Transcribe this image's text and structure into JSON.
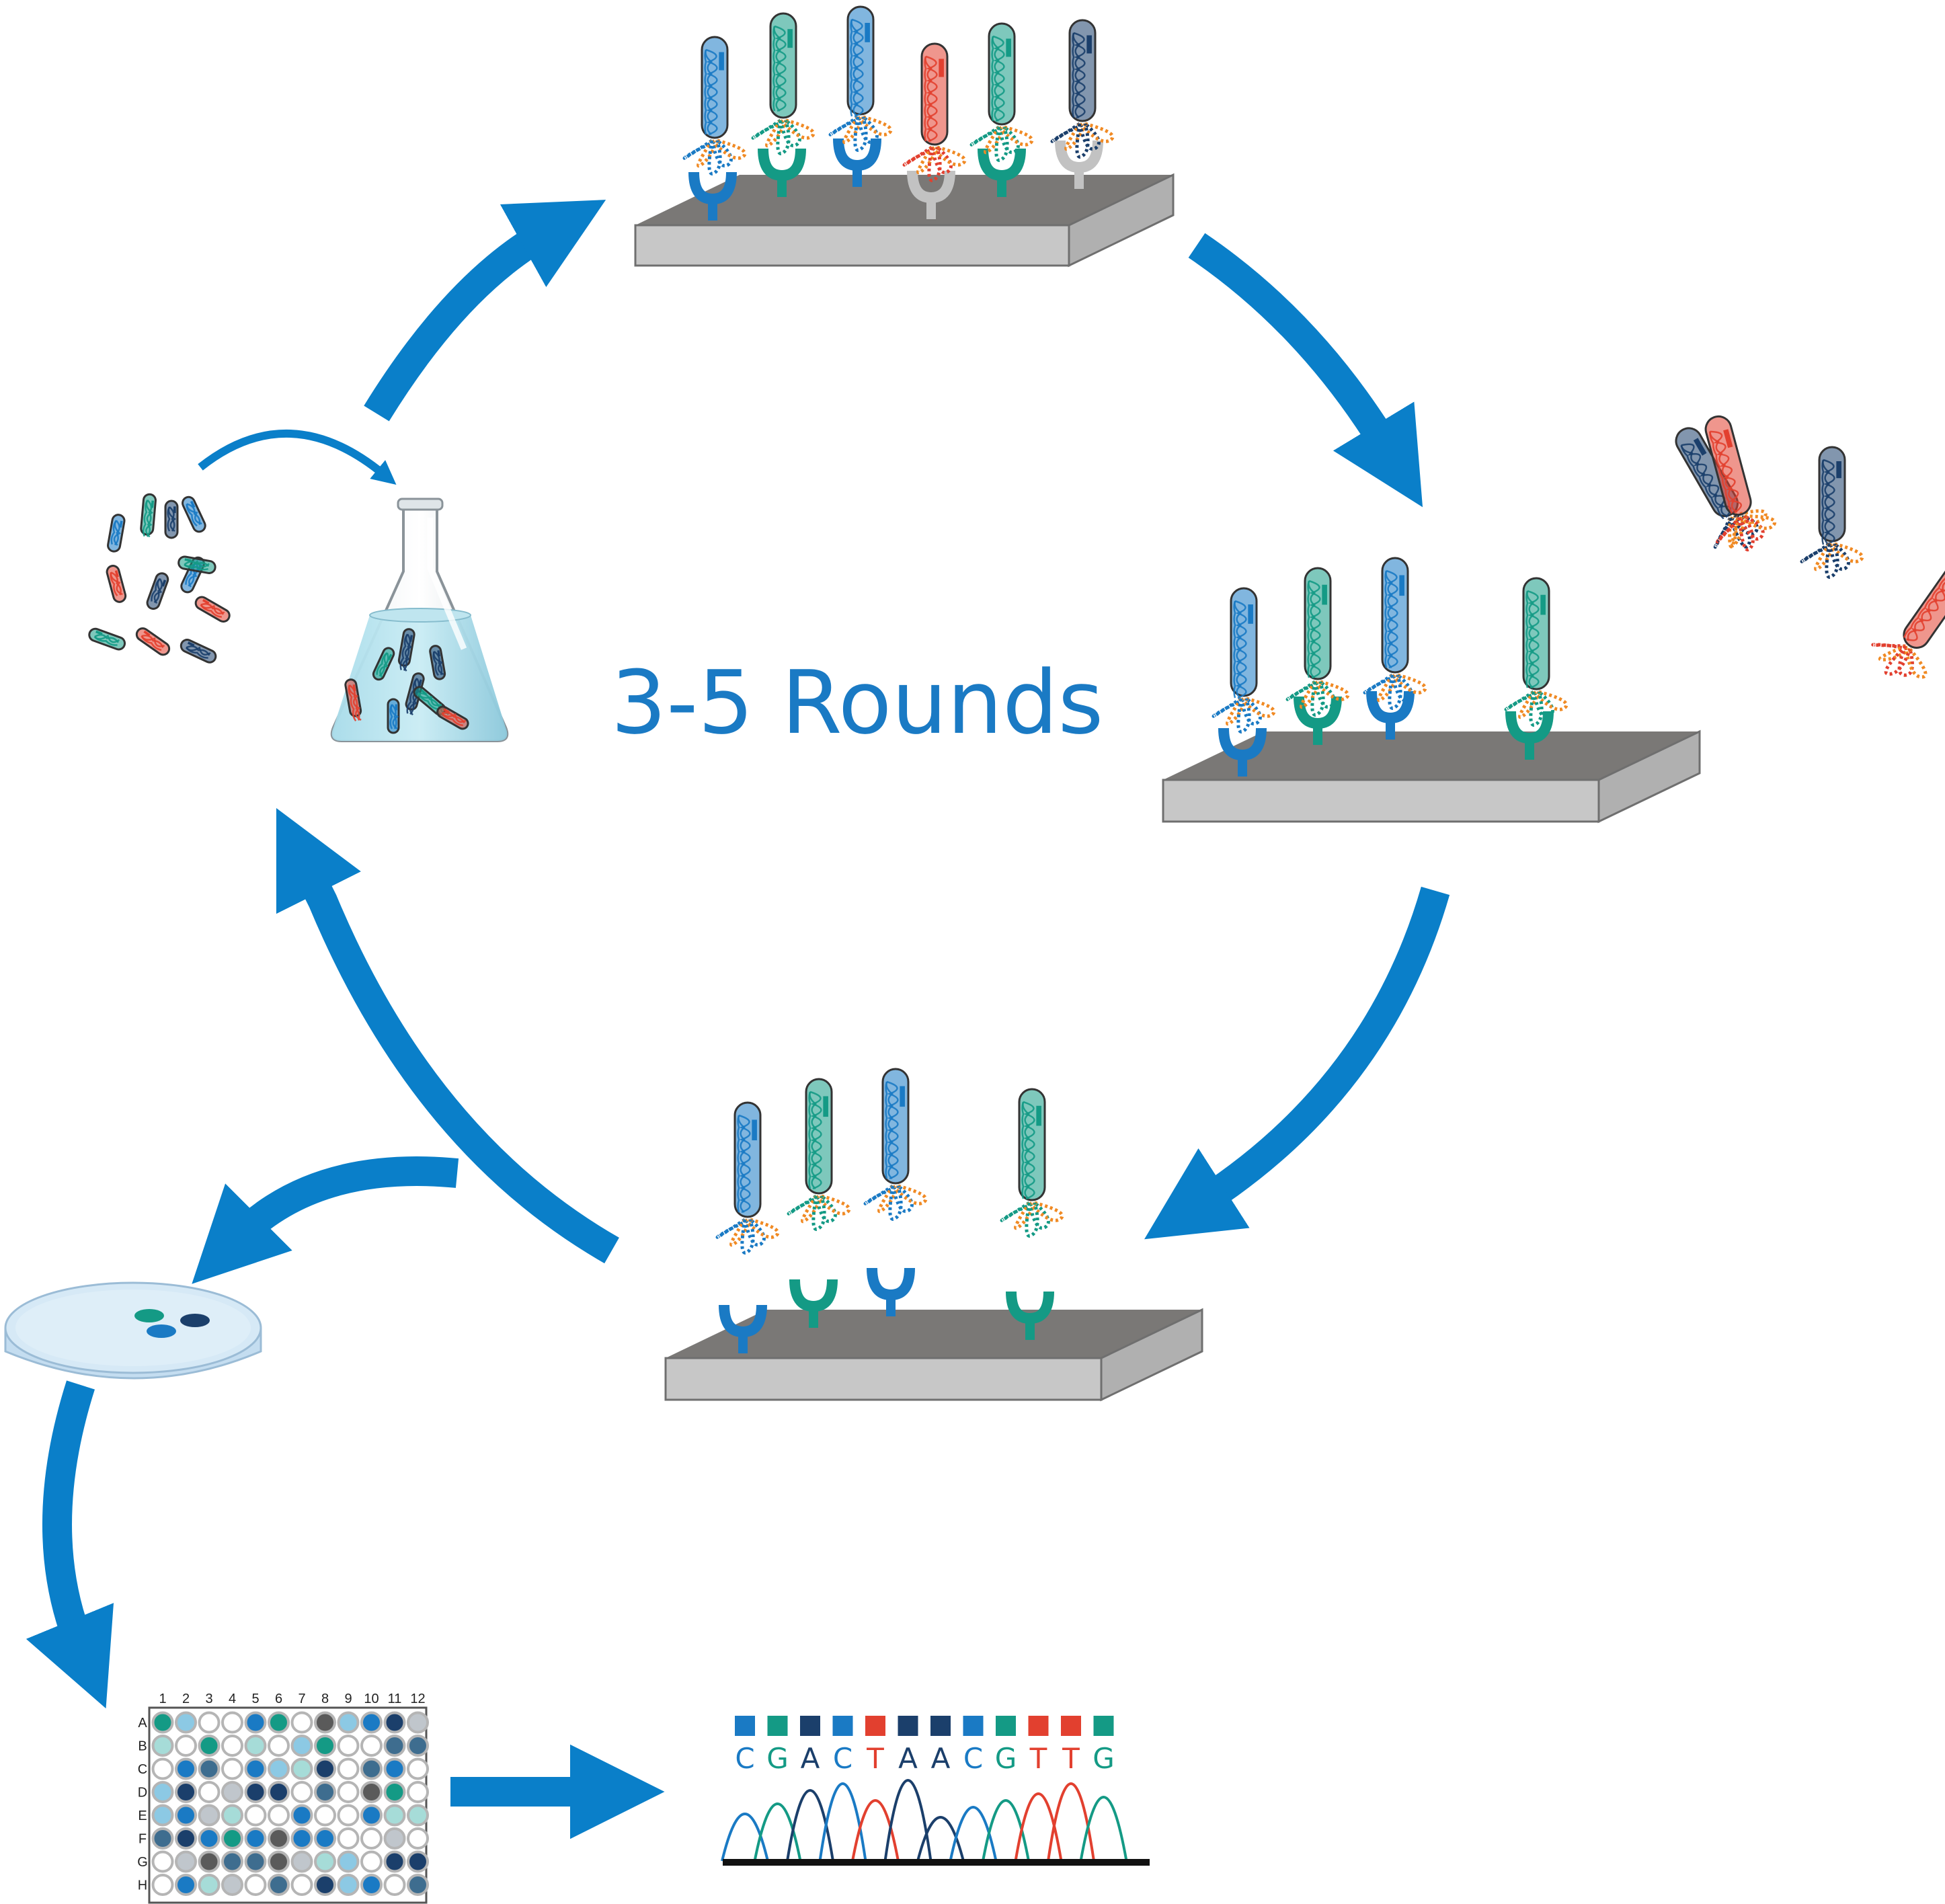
{
  "center_label": "3-5 Rounds",
  "colors": {
    "arrow": "#0a7fc9",
    "blue": "#1a7ac4",
    "teal": "#149a85",
    "navy": "#1b3f6b",
    "red": "#e2402f",
    "gray_marker": "#c2c2c2",
    "orange": "#f08a24",
    "plate_top": "#7a7876",
    "plate_front": "#c7c7c7",
    "flask_liquid": "#8fd0e4",
    "dish": "#cfe6f3"
  },
  "well_plate": {
    "column_labels": [
      "1",
      "2",
      "3",
      "4",
      "5",
      "6",
      "7",
      "8",
      "9",
      "10",
      "11",
      "12"
    ],
    "row_labels": [
      "A",
      "B",
      "C",
      "D",
      "E",
      "F",
      "G",
      "H"
    ]
  },
  "sequence": {
    "bases": [
      "C",
      "G",
      "A",
      "C",
      "T",
      "A",
      "A",
      "C",
      "G",
      "T",
      "T",
      "G"
    ],
    "base_colors": {
      "A": "#1b3f6b",
      "C": "#1a7ac4",
      "G": "#149a85",
      "T": "#e2402f"
    }
  },
  "icons": {
    "phage_mix": "phage-mix-icon",
    "flask": "flask-icon",
    "petri_dish": "petri-dish-icon",
    "well_plate": "well-plate-icon",
    "chromatogram": "chromatogram-icon"
  }
}
